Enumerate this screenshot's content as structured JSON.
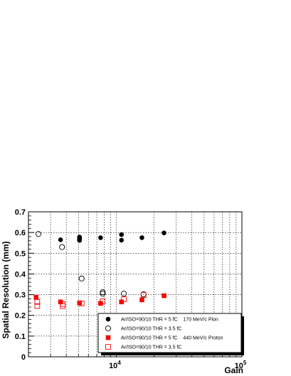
{
  "chart_data": {
    "type": "scatter",
    "title": "",
    "xlabel": "Gain",
    "ylabel": "Spatial Resolution (mm)",
    "xscale": "log",
    "xlim": [
      2000,
      100000
    ],
    "ylim": [
      0,
      0.7
    ],
    "y_ticks": [
      "0",
      "0.1",
      "0.2",
      "0.3",
      "0.4",
      "0.5",
      "0.6",
      "0.7"
    ],
    "x_tick_labels": [
      {
        "value": 10000,
        "base": "10",
        "exp": "4"
      },
      {
        "value": 100000,
        "base": "10",
        "exp": "5"
      }
    ],
    "grid": true,
    "legend_position": "bottom-right",
    "series": [
      {
        "name": "Ar/ISO=90/10 THR = 5 fC    170 MeV/c Pion",
        "marker": "filled-circle",
        "color": "#000000",
        "points": [
          [
            3600,
            0.565
          ],
          [
            5100,
            0.578
          ],
          [
            5100,
            0.572
          ],
          [
            5100,
            0.567
          ],
          [
            5100,
            0.562
          ],
          [
            7500,
            0.575
          ],
          [
            11000,
            0.59
          ],
          [
            11000,
            0.563
          ],
          [
            16000,
            0.575
          ],
          [
            24000,
            0.598
          ]
        ]
      },
      {
        "name": "Ar/ISO=90/10 THR = 3.5 fC",
        "marker": "open-circle",
        "color": "#000000",
        "points": [
          [
            2400,
            0.593
          ],
          [
            3700,
            0.53
          ],
          [
            5300,
            0.378
          ],
          [
            7800,
            0.312
          ],
          [
            7800,
            0.305
          ],
          [
            11500,
            0.305
          ],
          [
            16500,
            0.302
          ]
        ]
      },
      {
        "name": "Ar/ISO=90/10 THR = 5 fC    440 MeV/c Proton",
        "marker": "filled-square",
        "color": "#ff0000",
        "points": [
          [
            2300,
            0.287
          ],
          [
            3600,
            0.265
          ],
          [
            5100,
            0.26
          ],
          [
            7500,
            0.258
          ],
          [
            11000,
            0.265
          ],
          [
            16000,
            0.275
          ],
          [
            24000,
            0.295
          ]
        ]
      },
      {
        "name": "Ar/ISO=90/10 THR = 3.5 fC",
        "marker": "open-square",
        "color": "#ff0000",
        "points": [
          [
            2350,
            0.265
          ],
          [
            2350,
            0.245
          ],
          [
            3750,
            0.255
          ],
          [
            3750,
            0.245
          ],
          [
            5300,
            0.258
          ],
          [
            7800,
            0.268
          ],
          [
            11500,
            0.278
          ],
          [
            16500,
            0.298
          ]
        ]
      }
    ]
  }
}
